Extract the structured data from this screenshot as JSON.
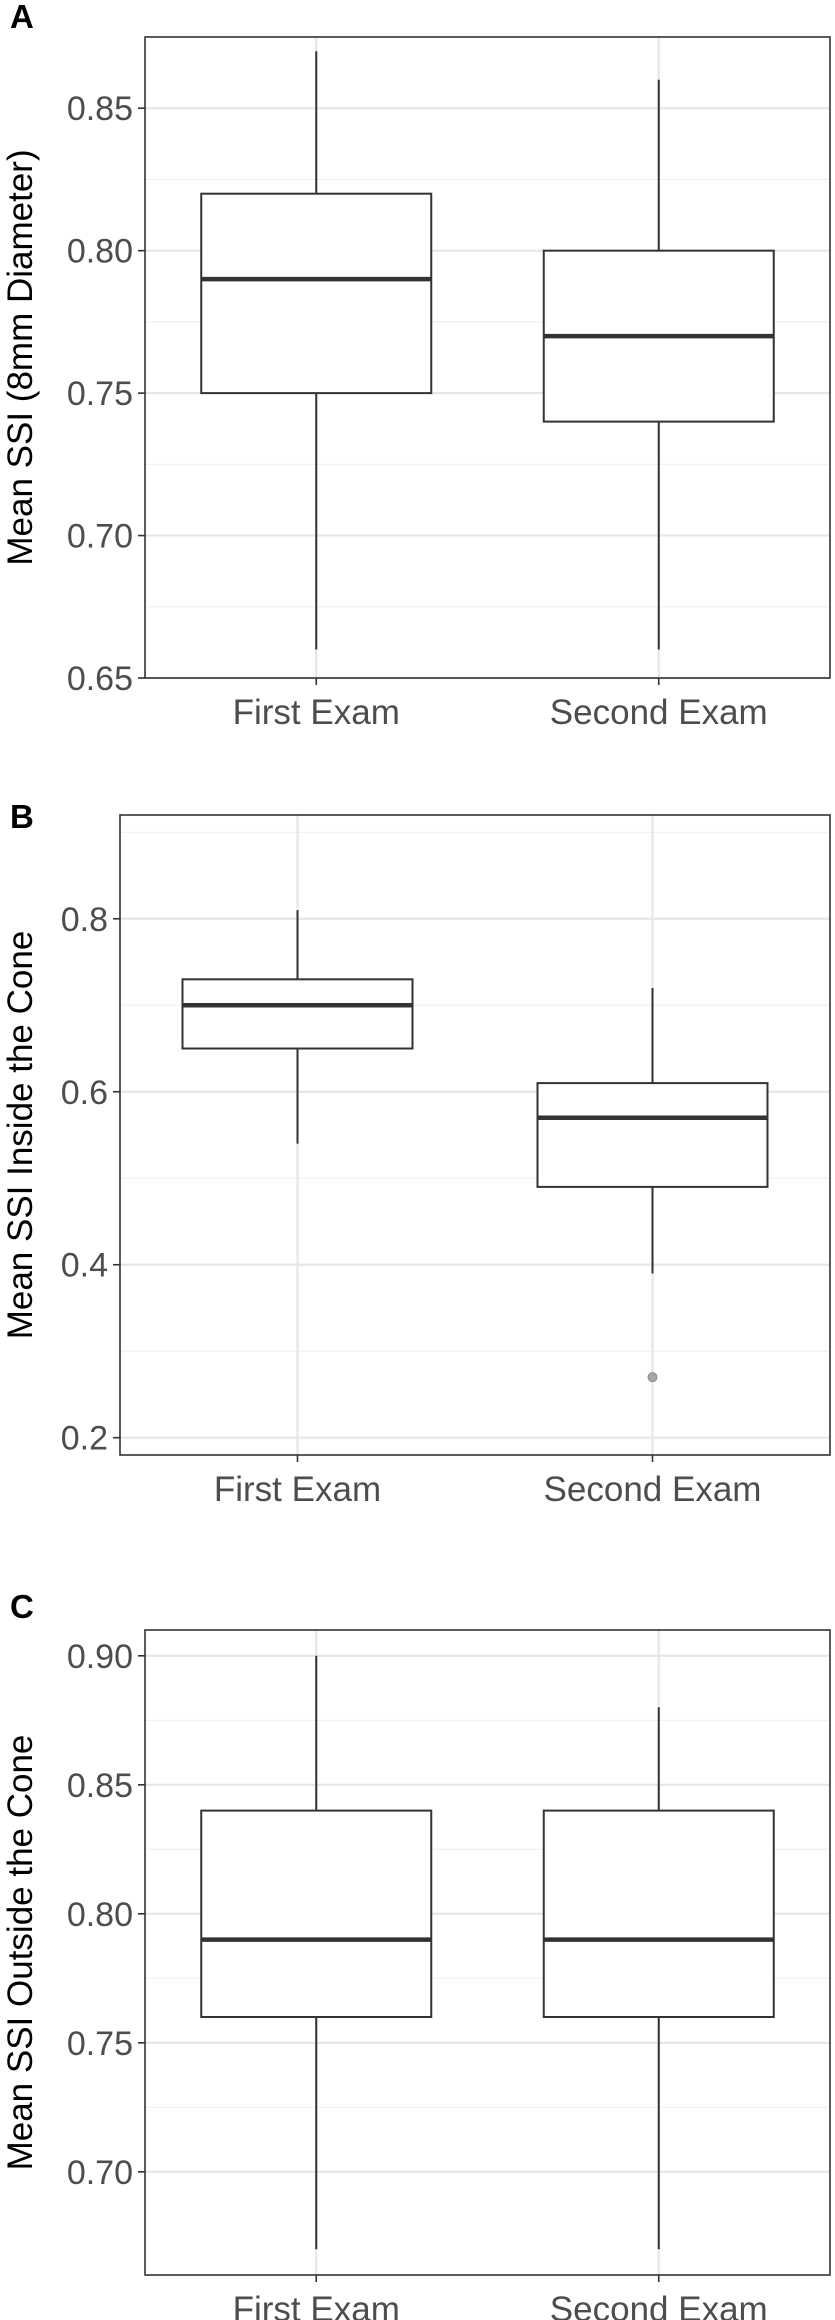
{
  "chart_data": [
    {
      "type": "box",
      "panel_label": "A",
      "ylabel": "Mean SSI (8mm Diameter)",
      "xlabel": "",
      "categories": [
        "First Exam",
        "Second Exam"
      ],
      "ylim": [
        0.65,
        0.875
      ],
      "yticks": [
        0.65,
        0.7,
        0.75,
        0.8,
        0.85
      ],
      "ytick_labels": [
        "0.65",
        "0.70",
        "0.75",
        "0.80",
        "0.85"
      ],
      "boxes": [
        {
          "category": "First Exam",
          "whisker_low": 0.66,
          "q1": 0.75,
          "median": 0.79,
          "q3": 0.82,
          "whisker_high": 0.87,
          "outliers": []
        },
        {
          "category": "Second Exam",
          "whisker_low": 0.66,
          "q1": 0.74,
          "median": 0.77,
          "q3": 0.8,
          "whisker_high": 0.86,
          "outliers": []
        }
      ],
      "grid": true
    },
    {
      "type": "box",
      "panel_label": "B",
      "ylabel": "Mean SSI Inside the Cone",
      "xlabel": "",
      "categories": [
        "First Exam",
        "Second Exam"
      ],
      "ylim": [
        0.18,
        0.92
      ],
      "yticks": [
        0.2,
        0.4,
        0.6,
        0.8
      ],
      "ytick_labels": [
        "0.2",
        "0.4",
        "0.6",
        "0.8"
      ],
      "boxes": [
        {
          "category": "First Exam",
          "whisker_low": 0.54,
          "q1": 0.65,
          "median": 0.7,
          "q3": 0.73,
          "whisker_high": 0.81,
          "outliers": []
        },
        {
          "category": "Second Exam",
          "whisker_low": 0.39,
          "q1": 0.49,
          "median": 0.57,
          "q3": 0.61,
          "whisker_high": 0.72,
          "outliers": [
            0.27
          ]
        }
      ],
      "grid": true
    },
    {
      "type": "box",
      "panel_label": "C",
      "ylabel": "Mean SSI Outside the Cone",
      "xlabel": "",
      "categories": [
        "First Exam",
        "Second Exam"
      ],
      "ylim": [
        0.66,
        0.91
      ],
      "yticks": [
        0.7,
        0.75,
        0.8,
        0.85,
        0.9
      ],
      "ytick_labels": [
        "0.70",
        "0.75",
        "0.80",
        "0.85",
        "0.90"
      ],
      "boxes": [
        {
          "category": "First Exam",
          "whisker_low": 0.67,
          "q1": 0.76,
          "median": 0.79,
          "q3": 0.84,
          "whisker_high": 0.9,
          "outliers": []
        },
        {
          "category": "Second Exam",
          "whisker_low": 0.67,
          "q1": 0.76,
          "median": 0.79,
          "q3": 0.84,
          "whisker_high": 0.88,
          "outliers": []
        }
      ],
      "grid": true
    }
  ]
}
